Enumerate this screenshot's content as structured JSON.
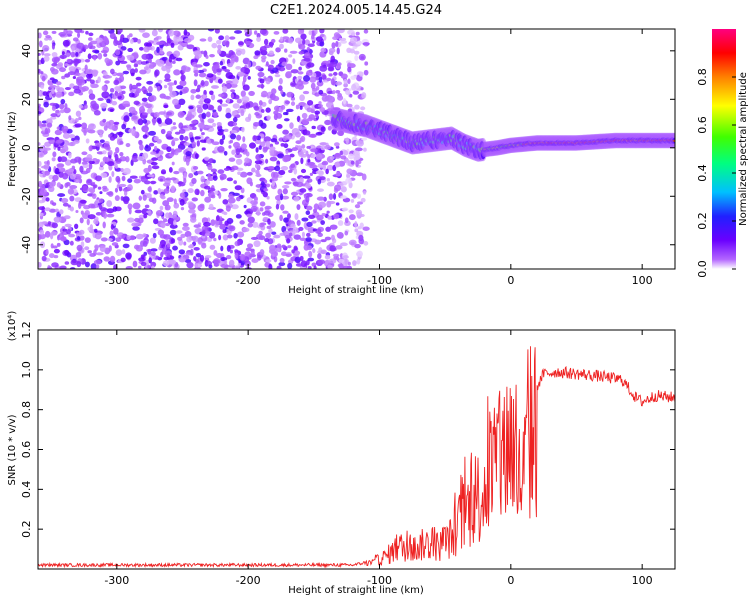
{
  "title": "C2E1.2024.005.14.45.G24",
  "chart_data": [
    {
      "type": "heatmap",
      "xlabel": "Height of straight line (km)",
      "ylabel": "Frequency (Hz)",
      "xlim": [
        -360,
        125
      ],
      "ylim": [
        -50,
        49
      ],
      "x_ticks": [
        -300,
        -200,
        -100,
        0,
        100
      ],
      "y_ticks": [
        -40,
        -20,
        0,
        20,
        40
      ],
      "colorbar": {
        "label": "Normalized spectral amplitude",
        "range": [
          0.0,
          1.0
        ],
        "ticks": [
          0.0,
          0.2,
          0.4,
          0.6,
          0.8
        ],
        "colors": [
          "#ffffff",
          "#b366ff",
          "#6a00ff",
          "#2020ff",
          "#00c0ff",
          "#00ff80",
          "#40ff00",
          "#ffff00",
          "#ff8000",
          "#ff0000",
          "#ff0080"
        ]
      },
      "regions": [
        {
          "x_range": [
            -360,
            -110
          ],
          "freq_range": [
            -50,
            49
          ],
          "amplitude_range": [
            0.0,
            0.15
          ]
        },
        {
          "x_range": [
            -135,
            -20
          ],
          "freq_range": [
            -20,
            20
          ],
          "amplitude_range": [
            0.1,
            0.5
          ]
        },
        {
          "x_range": [
            -20,
            125
          ],
          "freq_range": [
            0,
            4
          ],
          "amplitude_range": [
            0.6,
            1.0
          ]
        }
      ],
      "ridge": {
        "x": [
          -135,
          -110,
          -90,
          -75,
          -60,
          -45,
          -35,
          -25,
          -10,
          0,
          20,
          50,
          80,
          100,
          125
        ],
        "freq": [
          12,
          9,
          5,
          2,
          3,
          4,
          1,
          -1,
          0,
          1,
          2,
          2,
          3,
          3,
          3
        ]
      },
      "grid": false
    },
    {
      "type": "line",
      "xlabel": "Height of straight line (km)",
      "ylabel": "SNR (10 * v/v)",
      "yscale_label": "(x10⁴)",
      "xlim": [
        -360,
        125
      ],
      "ylim": [
        0,
        1.2
      ],
      "x_ticks": [
        -300,
        -200,
        -100,
        0,
        100
      ],
      "y_ticks": [
        0.2,
        0.4,
        0.6,
        0.8,
        1.0,
        1.2
      ],
      "series": [
        {
          "color": "#ee2222",
          "x": [
            -360,
            -300,
            -200,
            -150,
            -120,
            -105,
            -95,
            -85,
            -75,
            -65,
            -55,
            -45,
            -35,
            -25,
            -15,
            -5,
            0,
            5,
            10,
            15,
            25,
            35,
            50,
            65,
            75,
            85,
            95,
            100,
            110,
            125
          ],
          "y": [
            0.02,
            0.02,
            0.02,
            0.02,
            0.02,
            0.04,
            0.08,
            0.14,
            0.12,
            0.16,
            0.14,
            0.2,
            0.35,
            0.45,
            0.6,
            0.7,
            0.85,
            0.55,
            0.6,
            0.85,
            0.98,
            0.99,
            0.98,
            0.97,
            0.96,
            0.95,
            0.86,
            0.84,
            0.87,
            0.86
          ]
        }
      ],
      "grid": false
    }
  ]
}
